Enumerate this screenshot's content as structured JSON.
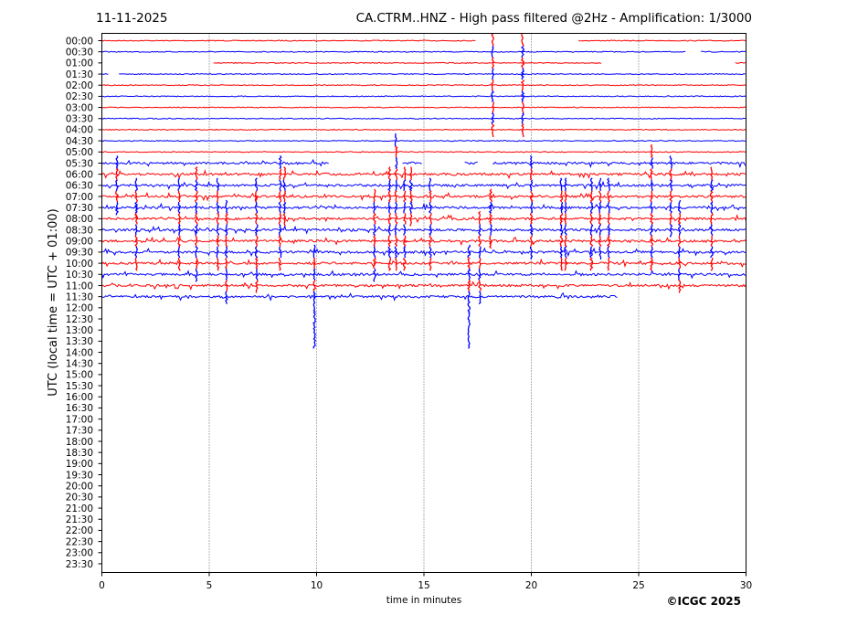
{
  "header": {
    "date": "11-11-2025",
    "title": "CA.CTRM..HNZ - High pass filtered @2Hz - Amplification: 1/3000"
  },
  "footer": {
    "copyright": "©ICGC 2025"
  },
  "chart_data": {
    "type": "line",
    "title": "CA.CTRM..HNZ - High pass filtered @2Hz - Amplification: 1/3000",
    "subtitle": "11-11-2025",
    "xlabel": "time in minutes",
    "ylabel": "UTC (local time = UTC + 01:00)",
    "xlim": [
      0,
      30
    ],
    "x_ticks": [
      "0",
      "5",
      "10",
      "15",
      "20",
      "25",
      "30"
    ],
    "grid": "vertical dotted lines at x ticks",
    "trace_colors": [
      "#ff0000",
      "#0000ff"
    ],
    "rows": [
      "00:00",
      "00:30",
      "01:00",
      "01:30",
      "02:00",
      "02:30",
      "03:00",
      "03:30",
      "04:00",
      "04:30",
      "05:00",
      "05:30",
      "06:00",
      "06:30",
      "07:00",
      "07:30",
      "08:00",
      "08:30",
      "09:00",
      "09:30",
      "10:00",
      "10:30",
      "11:00",
      "11:30",
      "12:00",
      "12:30",
      "13:00",
      "13:30",
      "14:00",
      "14:30",
      "15:00",
      "15:30",
      "16:00",
      "16:30",
      "17:00",
      "17:30",
      "18:00",
      "18:30",
      "19:00",
      "19:30",
      "20:00",
      "20:30",
      "21:00",
      "21:30",
      "22:00",
      "22:30",
      "23:00",
      "23:30"
    ],
    "recorded_rows": 24,
    "trace_gaps": [
      {
        "row": "00:00",
        "from": 17.4,
        "to": 22.2
      },
      {
        "row": "00:30",
        "from": 27.2,
        "to": 27.9
      },
      {
        "row": "01:00",
        "from": 0,
        "to": 5.2
      },
      {
        "row": "01:00",
        "from": 23.3,
        "to": 29.5
      },
      {
        "row": "01:30",
        "from": 0.3,
        "to": 0.8
      },
      {
        "row": "05:30",
        "from": 10.6,
        "to": 14.0
      },
      {
        "row": "05:30",
        "from": 14.9,
        "to": 16.9
      },
      {
        "row": "05:30",
        "from": 17.5,
        "to": 18.2
      },
      {
        "row": "11:30",
        "from": 24.0,
        "to": 30
      }
    ],
    "events": [
      {
        "x": 18.2,
        "row_from": "00:00",
        "row_to": "04:00"
      },
      {
        "x": 19.6,
        "row_from": "00:00",
        "row_to": "04:00"
      },
      {
        "x": 13.7,
        "row_from": "04:30",
        "row_to": "10:00"
      },
      {
        "x": 8.3,
        "row_from": "05:30",
        "row_to": "10:00"
      },
      {
        "x": 0.7,
        "row_from": "05:30",
        "row_to": "07:30"
      },
      {
        "x": 20.0,
        "row_from": "05:30",
        "row_to": "09:30"
      },
      {
        "x": 25.6,
        "row_from": "05:00",
        "row_to": "10:00"
      },
      {
        "x": 26.5,
        "row_from": "05:30",
        "row_to": "08:30"
      },
      {
        "x": 28.4,
        "row_from": "06:00",
        "row_to": "10:00"
      },
      {
        "x": 1.6,
        "row_from": "06:30",
        "row_to": "10:00"
      },
      {
        "x": 3.6,
        "row_from": "06:30",
        "row_to": "10:00"
      },
      {
        "x": 4.4,
        "row_from": "06:00",
        "row_to": "10:30"
      },
      {
        "x": 5.4,
        "row_from": "06:30",
        "row_to": "10:00"
      },
      {
        "x": 5.8,
        "row_from": "07:30",
        "row_to": "11:30"
      },
      {
        "x": 7.2,
        "row_from": "06:30",
        "row_to": "11:00"
      },
      {
        "x": 8.5,
        "row_from": "06:00",
        "row_to": "08:00"
      },
      {
        "x": 12.7,
        "row_from": "07:00",
        "row_to": "10:30"
      },
      {
        "x": 13.4,
        "row_from": "06:00",
        "row_to": "10:00"
      },
      {
        "x": 14.1,
        "row_from": "06:00",
        "row_to": "10:00"
      },
      {
        "x": 14.4,
        "row_from": "06:00",
        "row_to": "08:00"
      },
      {
        "x": 15.3,
        "row_from": "06:30",
        "row_to": "10:00"
      },
      {
        "x": 18.1,
        "row_from": "07:00",
        "row_to": "09:00"
      },
      {
        "x": 21.4,
        "row_from": "06:30",
        "row_to": "10:00"
      },
      {
        "x": 21.6,
        "row_from": "06:30",
        "row_to": "10:00"
      },
      {
        "x": 22.8,
        "row_from": "06:30",
        "row_to": "10:00"
      },
      {
        "x": 23.2,
        "row_from": "06:30",
        "row_to": "09:30"
      },
      {
        "x": 23.6,
        "row_from": "06:30",
        "row_to": "10:00"
      },
      {
        "x": 26.9,
        "row_from": "07:30",
        "row_to": "11:00"
      },
      {
        "x": 9.9,
        "row_from": "09:30",
        "row_to": "13:30"
      },
      {
        "x": 17.1,
        "row_from": "09:30",
        "row_to": "13:30"
      },
      {
        "x": 17.6,
        "row_from": "08:00",
        "row_to": "11:30"
      }
    ]
  }
}
